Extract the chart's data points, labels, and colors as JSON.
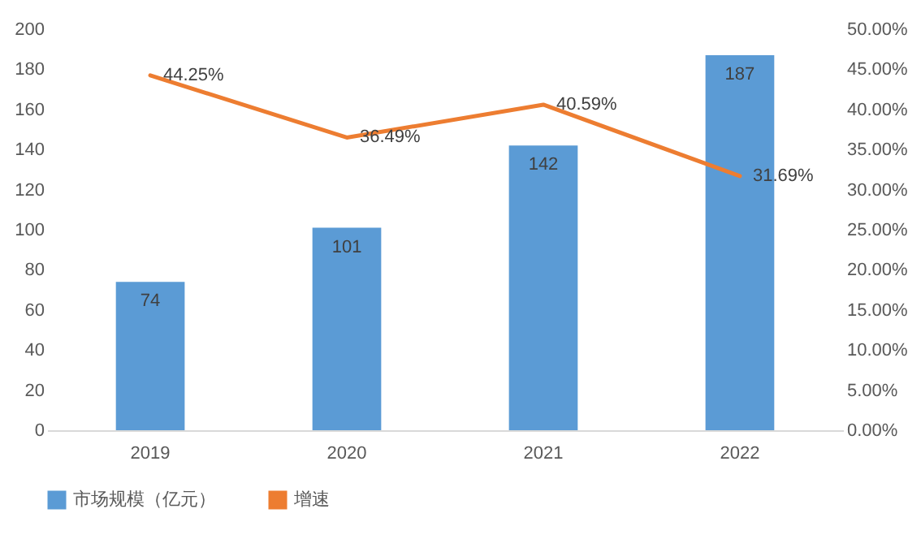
{
  "chart_data": {
    "type": "bar",
    "categories": [
      "2019",
      "2020",
      "2021",
      "2022"
    ],
    "series": [
      {
        "name": "市场规模（亿元）",
        "color": "#5b9bd5",
        "values": [
          74,
          101,
          142,
          187
        ],
        "value_labels": [
          "74",
          "101",
          "142",
          "187"
        ]
      },
      {
        "name": "增速",
        "type": "line",
        "axis": "y2",
        "color": "#ed7d31",
        "values": [
          44.25,
          36.49,
          40.59,
          31.69
        ],
        "value_labels": [
          "44.25%",
          "36.49%",
          "40.59%",
          "31.69%"
        ]
      }
    ],
    "ylim": [
      0,
      200
    ],
    "yticks": [
      0,
      20,
      40,
      60,
      80,
      100,
      120,
      140,
      160,
      180,
      200
    ],
    "y2lim": [
      0,
      50
    ],
    "y2ticks": [
      {
        "value": 0,
        "label": "0.00%"
      },
      {
        "value": 5,
        "label": "5.00%"
      },
      {
        "value": 10,
        "label": "10.00%"
      },
      {
        "value": 15,
        "label": "15.00%"
      },
      {
        "value": 20,
        "label": "20.00%"
      },
      {
        "value": 25,
        "label": "25.00%"
      },
      {
        "value": 30,
        "label": "30.00%"
      },
      {
        "value": 35,
        "label": "35.00%"
      },
      {
        "value": 40,
        "label": "40.00%"
      },
      {
        "value": 45,
        "label": "45.00%"
      },
      {
        "value": 50,
        "label": "50.00%"
      }
    ],
    "legend": "bottom",
    "marker": "none",
    "line_style": "solid",
    "grid": false
  }
}
